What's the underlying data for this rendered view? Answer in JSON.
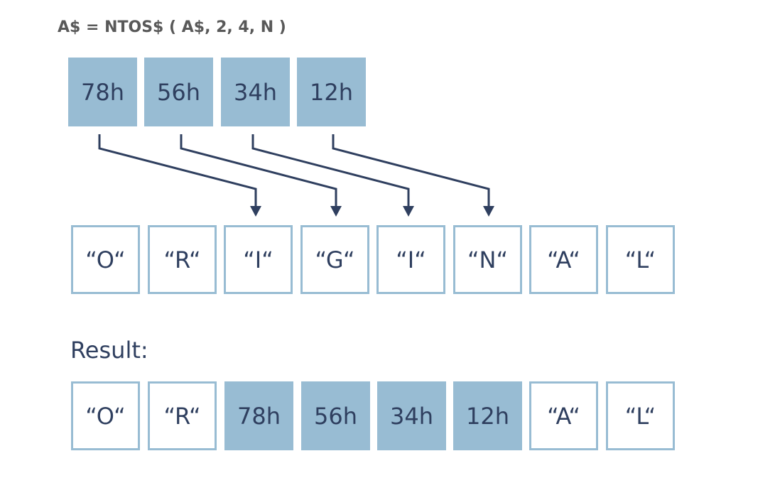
{
  "title": "A$ = NTOS$ ( A$, 2, 4, N )",
  "source_bytes": [
    "78h",
    "56h",
    "34h",
    "12h"
  ],
  "target_string": [
    "“O“",
    "“R“",
    "“I“",
    "“G“",
    "“I“",
    "“N“",
    "“A“",
    "“L“"
  ],
  "result_label": "Result:",
  "result": [
    "“O“",
    "“R“",
    "78h",
    "56h",
    "34h",
    "12h",
    "“A“",
    "“L“"
  ],
  "colors": {
    "fill": "#98bcd3",
    "text": "#2f3f5f",
    "title": "#595959",
    "arrow": "#2f3f5f"
  }
}
